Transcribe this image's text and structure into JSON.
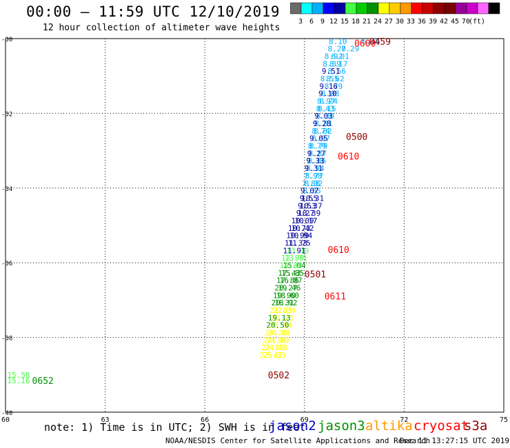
{
  "header": {
    "title": "00:00 – 11:59 UTC 12/10/2019",
    "subtitle": "12 hour collection of altimeter wave heights"
  },
  "colorbar": {
    "colors": [
      "#6a6a6a",
      "#00ffff",
      "#00b0ff",
      "#0000ff",
      "#0000a0",
      "#44ff44",
      "#00cc00",
      "#009000",
      "#ffff00",
      "#ffcc00",
      "#ff9900",
      "#ff0000",
      "#cc0000",
      "#900000",
      "#7a0000",
      "#990099",
      "#cc00cc",
      "#ff66ff",
      "#000000"
    ],
    "labels": [
      "3",
      "6",
      "9",
      "12",
      "15",
      "18",
      "21",
      "24",
      "27",
      "30",
      "33",
      "36",
      "39",
      "42",
      "45",
      "70",
      "(ft)"
    ]
  },
  "chart_data": {
    "type": "scatter",
    "x_ticks": [
      "60",
      "63",
      "66",
      "69",
      "72",
      "75"
    ],
    "y_ticks": [
      "-30",
      "-32",
      "-34",
      "-36",
      "-38",
      "-40"
    ],
    "xlim": [
      60,
      75
    ],
    "ylim": [
      -40,
      -30
    ],
    "grid": true,
    "points": [
      {
        "x": 69.73,
        "y": -30.07,
        "label": "8.10",
        "color": "#00b0ff"
      },
      {
        "x": 70.73,
        "y": -30.07,
        "label": "6.46",
        "color": "#00b0ff"
      },
      {
        "x": 69.7,
        "y": -30.27,
        "label": "8.20",
        "color": "#00b0ff"
      },
      {
        "x": 70.1,
        "y": -30.27,
        "label": "7.29",
        "color": "#00b0ff"
      },
      {
        "x": 69.8,
        "y": -30.47,
        "label": "6.01",
        "color": "#00b0ff"
      },
      {
        "x": 69.6,
        "y": -30.47,
        "label": "8.92",
        "color": "#00b0ff"
      },
      {
        "x": 69.75,
        "y": -30.67,
        "label": "8.17",
        "color": "#00b0ff"
      },
      {
        "x": 69.55,
        "y": -30.67,
        "label": "8.39",
        "color": "#00b0ff"
      },
      {
        "x": 69.7,
        "y": -30.87,
        "label": "8.56",
        "color": "#00b0ff"
      },
      {
        "x": 69.52,
        "y": -30.87,
        "label": "9.51",
        "color": "#0000a0"
      },
      {
        "x": 69.65,
        "y": -31.07,
        "label": "8.62",
        "color": "#00b0ff"
      },
      {
        "x": 69.48,
        "y": -31.07,
        "label": "8.55",
        "color": "#00b0ff"
      },
      {
        "x": 69.6,
        "y": -31.27,
        "label": "8.79",
        "color": "#00b0ff"
      },
      {
        "x": 69.45,
        "y": -31.27,
        "label": "9.16",
        "color": "#0000a0"
      },
      {
        "x": 69.5,
        "y": -31.47,
        "label": "8.08",
        "color": "#00b0ff"
      },
      {
        "x": 69.42,
        "y": -31.47,
        "label": "9.10",
        "color": "#0000a0"
      },
      {
        "x": 69.45,
        "y": -31.67,
        "label": "8.24",
        "color": "#00b0ff"
      },
      {
        "x": 69.38,
        "y": -31.67,
        "label": "8.97",
        "color": "#00b0ff"
      },
      {
        "x": 69.4,
        "y": -31.87,
        "label": "8.15",
        "color": "#00b0ff"
      },
      {
        "x": 69.35,
        "y": -31.87,
        "label": "8.43",
        "color": "#00b0ff"
      },
      {
        "x": 69.35,
        "y": -32.07,
        "label": "8.30",
        "color": "#00b0ff"
      },
      {
        "x": 69.3,
        "y": -32.07,
        "label": "9.03",
        "color": "#0000a0"
      },
      {
        "x": 69.3,
        "y": -32.27,
        "label": "8.81",
        "color": "#00b0ff"
      },
      {
        "x": 69.25,
        "y": -32.27,
        "label": "9.28",
        "color": "#0000a0"
      },
      {
        "x": 69.28,
        "y": -32.47,
        "label": "8.82",
        "color": "#00b0ff"
      },
      {
        "x": 69.22,
        "y": -32.47,
        "label": "8.74",
        "color": "#00b0ff"
      },
      {
        "x": 69.22,
        "y": -32.67,
        "label": "8.97",
        "color": "#00b0ff"
      },
      {
        "x": 69.15,
        "y": -32.67,
        "label": "9.05",
        "color": "#0000a0"
      },
      {
        "x": 69.15,
        "y": -32.87,
        "label": "8.79",
        "color": "#00b0ff"
      },
      {
        "x": 69.1,
        "y": -32.87,
        "label": "8.79",
        "color": "#00b0ff"
      },
      {
        "x": 69.12,
        "y": -33.07,
        "label": "8.87",
        "color": "#00b0ff"
      },
      {
        "x": 69.08,
        "y": -33.07,
        "label": "9.27",
        "color": "#0000a0"
      },
      {
        "x": 69.1,
        "y": -33.27,
        "label": "8.86",
        "color": "#00b0ff"
      },
      {
        "x": 69.05,
        "y": -33.27,
        "label": "9.33",
        "color": "#0000a0"
      },
      {
        "x": 69.05,
        "y": -33.47,
        "label": "8.94",
        "color": "#00b0ff"
      },
      {
        "x": 69.0,
        "y": -33.47,
        "label": "9.31",
        "color": "#0000a0"
      },
      {
        "x": 69.02,
        "y": -33.67,
        "label": "8.77",
        "color": "#00b0ff"
      },
      {
        "x": 68.98,
        "y": -33.67,
        "label": "7.98",
        "color": "#00b0ff"
      },
      {
        "x": 69.0,
        "y": -33.87,
        "label": "8.32",
        "color": "#00b0ff"
      },
      {
        "x": 68.92,
        "y": -33.87,
        "label": "7.88",
        "color": "#00b0ff"
      },
      {
        "x": 68.95,
        "y": -34.07,
        "label": "8.35",
        "color": "#00b0ff"
      },
      {
        "x": 68.88,
        "y": -34.07,
        "label": "9.07",
        "color": "#0000a0"
      },
      {
        "x": 68.9,
        "y": -34.27,
        "label": "10.31",
        "color": "#0000a0"
      },
      {
        "x": 68.85,
        "y": -34.27,
        "label": "9.55",
        "color": "#0000a0"
      },
      {
        "x": 68.85,
        "y": -34.47,
        "label": "10.37",
        "color": "#0000a0"
      },
      {
        "x": 68.8,
        "y": -34.47,
        "label": "9.53",
        "color": "#0000a0"
      },
      {
        "x": 68.8,
        "y": -34.67,
        "label": "10.39",
        "color": "#0000a0"
      },
      {
        "x": 68.75,
        "y": -34.67,
        "label": "9.27",
        "color": "#0000a0"
      },
      {
        "x": 68.7,
        "y": -34.87,
        "label": "10.17",
        "color": "#0000a0"
      },
      {
        "x": 68.6,
        "y": -34.87,
        "label": "10.09",
        "color": "#0000a0"
      },
      {
        "x": 68.6,
        "y": -35.07,
        "label": "10.42",
        "color": "#0000a0"
      },
      {
        "x": 68.5,
        "y": -35.07,
        "label": "10.73",
        "color": "#0000a0"
      },
      {
        "x": 68.55,
        "y": -35.27,
        "label": "10.94",
        "color": "#0000a0"
      },
      {
        "x": 68.45,
        "y": -35.27,
        "label": "10.99",
        "color": "#0000a0"
      },
      {
        "x": 68.5,
        "y": -35.47,
        "label": "11.75",
        "color": "#0000a0"
      },
      {
        "x": 68.4,
        "y": -35.47,
        "label": "11.33",
        "color": "#0000a0"
      },
      {
        "x": 68.45,
        "y": -35.67,
        "label": "13.19",
        "color": "#44ff44"
      },
      {
        "x": 68.35,
        "y": -35.67,
        "label": "11.91",
        "color": "#0000a0"
      },
      {
        "x": 68.4,
        "y": -35.87,
        "label": "13.71",
        "color": "#44ff44"
      },
      {
        "x": 68.3,
        "y": -35.87,
        "label": "12.99",
        "color": "#44ff44"
      },
      {
        "x": 68.35,
        "y": -36.07,
        "label": "15.04",
        "color": "#009000"
      },
      {
        "x": 68.25,
        "y": -36.07,
        "label": "14.83",
        "color": "#44ff44"
      },
      {
        "x": 68.3,
        "y": -36.27,
        "label": "15.85",
        "color": "#009000"
      },
      {
        "x": 68.2,
        "y": -36.27,
        "label": "17.43",
        "color": "#009000"
      },
      {
        "x": 68.25,
        "y": -36.47,
        "label": "16.87",
        "color": "#009000"
      },
      {
        "x": 68.15,
        "y": -36.47,
        "label": "17.86",
        "color": "#009000"
      },
      {
        "x": 68.2,
        "y": -36.67,
        "label": "19.46",
        "color": "#009000"
      },
      {
        "x": 68.1,
        "y": -36.67,
        "label": "20.27",
        "color": "#009000"
      },
      {
        "x": 68.15,
        "y": -36.87,
        "label": "18.60",
        "color": "#009000"
      },
      {
        "x": 68.05,
        "y": -36.87,
        "label": "19.90",
        "color": "#009000"
      },
      {
        "x": 68.1,
        "y": -37.07,
        "label": "18.92",
        "color": "#009000"
      },
      {
        "x": 68.0,
        "y": -37.07,
        "label": "20.31",
        "color": "#009000"
      },
      {
        "x": 68.05,
        "y": -37.27,
        "label": "22.34",
        "color": "#ffff00"
      },
      {
        "x": 67.95,
        "y": -37.27,
        "label": "21.82",
        "color": "#ffff00"
      },
      {
        "x": 68.0,
        "y": -37.47,
        "label": "22.21",
        "color": "#ffff00"
      },
      {
        "x": 67.9,
        "y": -37.47,
        "label": "19.13",
        "color": "#009000"
      },
      {
        "x": 67.95,
        "y": -37.67,
        "label": "22.54",
        "color": "#ffff00"
      },
      {
        "x": 67.85,
        "y": -37.67,
        "label": "20.50",
        "color": "#009000"
      },
      {
        "x": 67.9,
        "y": -37.87,
        "label": "24.01",
        "color": "#ffff00"
      },
      {
        "x": 67.8,
        "y": -37.87,
        "label": "24.30",
        "color": "#ffff00"
      },
      {
        "x": 67.85,
        "y": -38.07,
        "label": "24.80",
        "color": "#ffff00"
      },
      {
        "x": 67.75,
        "y": -38.07,
        "label": "22.36",
        "color": "#ffff00"
      },
      {
        "x": 67.8,
        "y": -38.27,
        "label": "24.18",
        "color": "#ffff00"
      },
      {
        "x": 67.7,
        "y": -38.27,
        "label": "22.85",
        "color": "#ffff00"
      },
      {
        "x": 67.75,
        "y": -38.47,
        "label": "25.33",
        "color": "#ffff00"
      },
      {
        "x": 67.65,
        "y": -38.47,
        "label": "23.42",
        "color": "#ffff00"
      },
      {
        "x": 60.05,
        "y": -39.0,
        "label": "15.58",
        "color": "#44ff44"
      },
      {
        "x": 60.05,
        "y": -39.15,
        "label": "15.16",
        "color": "#44ff44"
      }
    ],
    "time_labels": [
      {
        "x": 70.95,
        "y": -30.07,
        "label": "0459",
        "color": "#900000"
      },
      {
        "x": 70.5,
        "y": -30.12,
        "label": "0609",
        "color": "#ff0000"
      },
      {
        "x": 70.25,
        "y": -32.62,
        "label": "0500",
        "color": "#900000"
      },
      {
        "x": 70.0,
        "y": -33.15,
        "label": "0610",
        "color": "#ff0000"
      },
      {
        "x": 69.7,
        "y": -35.65,
        "label": "0610",
        "color": "#ff0000"
      },
      {
        "x": 69.0,
        "y": -36.3,
        "label": "0501",
        "color": "#900000"
      },
      {
        "x": 69.6,
        "y": -36.89,
        "label": "0611",
        "color": "#ff0000"
      },
      {
        "x": 67.9,
        "y": -39.0,
        "label": "0502",
        "color": "#900000"
      },
      {
        "x": 60.8,
        "y": -39.15,
        "label": "0652",
        "color": "#009000"
      }
    ]
  },
  "footer": {
    "note": "note: 1) Time is in UTC; 2) SWH is in feet",
    "credit": "NOAA/NESDIS Center for Satellite Applications and Research",
    "timestamp": "Dec 11 13:27:15 UTC 2019"
  },
  "legend": [
    {
      "name": "jason2",
      "color": "#0000cc"
    },
    {
      "name": "jason3",
      "color": "#009000"
    },
    {
      "name": "altika",
      "color": "#ff9900"
    },
    {
      "name": "cryosat",
      "color": "#ff0000"
    },
    {
      "name": "s3a",
      "color": "#900000"
    }
  ]
}
